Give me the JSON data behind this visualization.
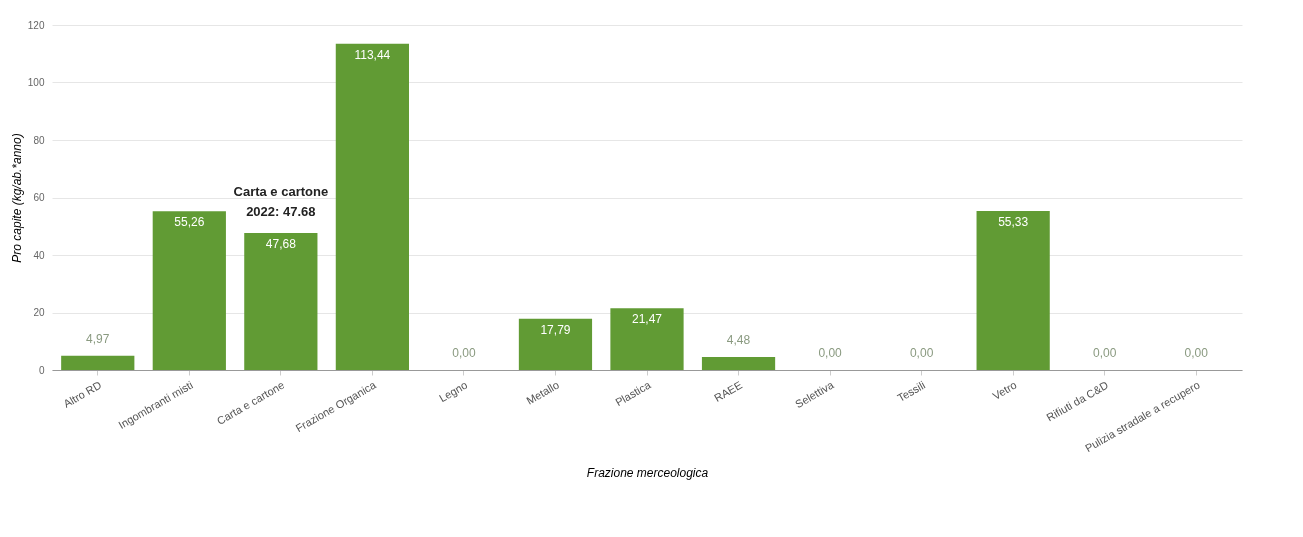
{
  "chart_data": {
    "type": "bar",
    "xlabel": "Frazione merceologica",
    "ylabel": "Pro capite (kg/ab.*anno)",
    "categories": [
      "Altro RD",
      "Ingombranti misti",
      "Carta e cartone",
      "Frazione Organica",
      "Legno",
      "Metallo",
      "Plastica",
      "RAEE",
      "Selettiva",
      "Tessili",
      "Vetro",
      "Rifiuti da C&D",
      "Pulizia stradale a recupero"
    ],
    "values": [
      4.97,
      55.26,
      47.68,
      113.44,
      0,
      17.79,
      21.47,
      4.48,
      0,
      0,
      55.33,
      0,
      0
    ],
    "value_labels": [
      "4,97",
      "55,26",
      "47,68",
      "113,44",
      "0,00",
      "17,79",
      "21,47",
      "4,48",
      "0,00",
      "0,00",
      "55,33",
      "0,00",
      "0,00"
    ],
    "color": "#619b34",
    "ylim": [
      0,
      120
    ],
    "yticks": [
      0,
      20,
      40,
      60,
      80,
      100,
      120
    ],
    "grid": "y",
    "annotations": [
      {
        "text": "Carta e cartone\n2022: 47.68",
        "x": "Carta e cartone",
        "y": 47.68
      }
    ]
  }
}
